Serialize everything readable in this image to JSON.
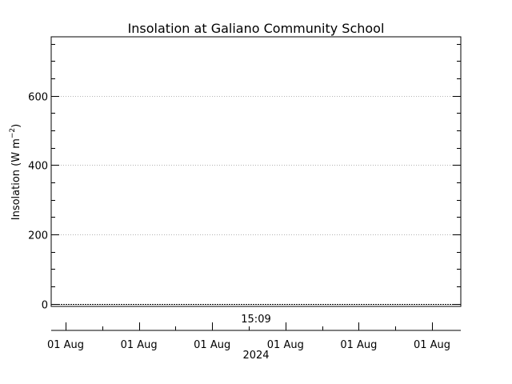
{
  "chart_data": {
    "type": "line",
    "title": "Insolation at Galiano Community School",
    "ylabel": "Insolation (W m",
    "ylabel_sup": "−2",
    "ylabel_close": ")",
    "ylim": [
      -8,
      770
    ],
    "yticks": [
      0,
      200,
      400,
      600
    ],
    "y_minor_step": 50,
    "ygrid": true,
    "ygrid_style": "dotted",
    "time_label": "15:09",
    "xticks": [
      "01 Aug",
      "01 Aug",
      "01 Aug",
      "01 Aug",
      "01 Aug",
      "01 Aug"
    ],
    "xlabel": "2024",
    "series": [
      {
        "values": [
          0,
          0
        ]
      }
    ],
    "colors": {
      "axes": "#000000",
      "grid": "#b4b4b4",
      "line": "#000000"
    }
  }
}
